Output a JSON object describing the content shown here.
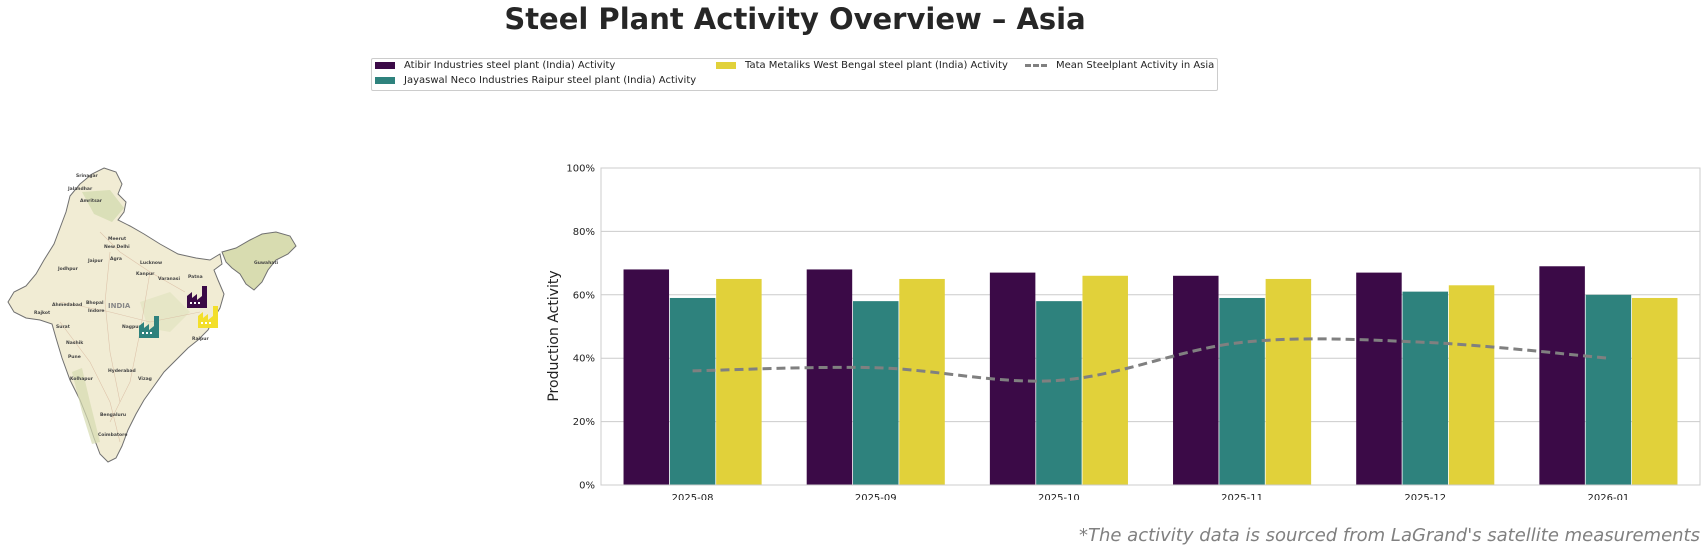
{
  "title": "Steel Plant Activity Overview – Asia",
  "footnote": "*The activity data is sourced from LaGrand's satellite measurements",
  "legend": {
    "items": [
      {
        "label": "Atibir Industries steel plant (India) Activity",
        "color": "#3b0a47"
      },
      {
        "label": "Jayaswal Neco Industries Raipur steel plant (India) Activity",
        "color": "#2e827d"
      },
      {
        "label": "Tata Metaliks West Bengal steel plant (India) Activity",
        "color": "#e1d13a"
      },
      {
        "label": "Mean Steelplant Activity in Asia",
        "color": "#808080"
      }
    ]
  },
  "map": {
    "country_label": "INDIA",
    "cities": [
      "Srinagar",
      "Jalandhar",
      "Amritsar",
      "Meerut",
      "New Delhi",
      "Jaipur",
      "Agra",
      "Lucknow",
      "Jodhpur",
      "Kanpur",
      "Varanasi",
      "Patna",
      "Ahmedabad",
      "Bhopal",
      "Indore",
      "Rajkot",
      "Surat",
      "Nagpur",
      "Nashik",
      "Raipur",
      "Pune",
      "Hyderabad",
      "Kolhapur",
      "Vizag",
      "Bengaluru",
      "Coimbatore",
      "Guwahati"
    ]
  },
  "chart_data": {
    "type": "bar",
    "categories": [
      "2025-08",
      "2025-09",
      "2025-10",
      "2025-11",
      "2025-12",
      "2026-01"
    ],
    "series": [
      {
        "name": "Atibir Industries steel plant (India) Activity",
        "values": [
          68,
          68,
          67,
          66,
          67,
          69
        ],
        "color": "#3b0a47"
      },
      {
        "name": "Jayaswal Neco Industries Raipur steel plant (India) Activity",
        "values": [
          59,
          58,
          58,
          59,
          61,
          60
        ],
        "color": "#2e827d"
      },
      {
        "name": "Tata Metaliks West Bengal steel plant (India) Activity",
        "values": [
          65,
          65,
          66,
          65,
          63,
          59
        ],
        "color": "#e1d13a"
      }
    ],
    "line": {
      "name": "Mean Steelplant Activity in Asia",
      "values": [
        36,
        37,
        33,
        45,
        45,
        40
      ],
      "color": "#808080"
    },
    "ylabel": "Production Activity",
    "ylim": [
      0,
      100
    ],
    "yticks": [
      "0%",
      "20%",
      "40%",
      "60%",
      "80%",
      "100%"
    ],
    "grid": true
  }
}
